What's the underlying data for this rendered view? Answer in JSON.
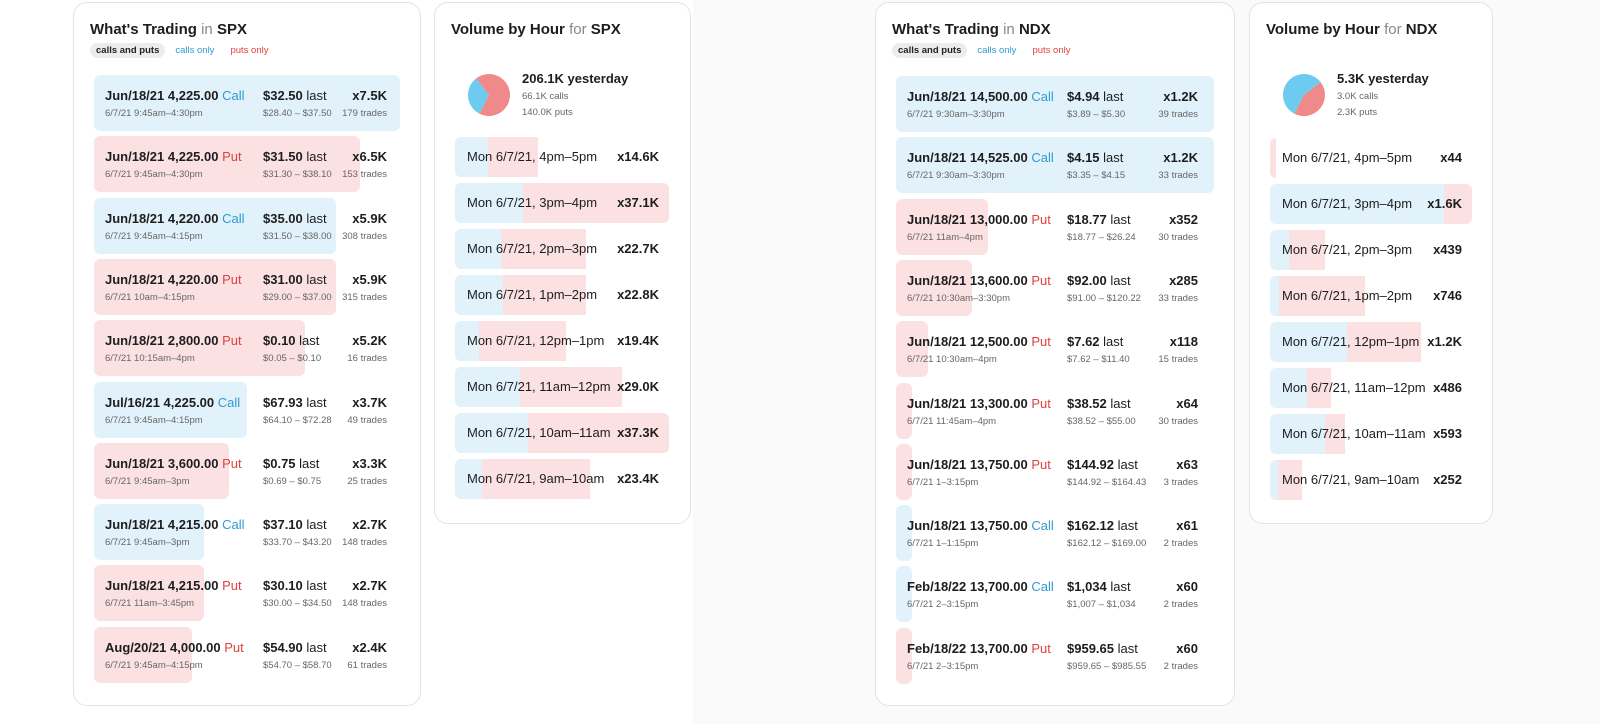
{
  "colors": {
    "call": "#e1f2fa",
    "put": "#fbe1e2",
    "call_text": "#2e9bd1",
    "put_text": "#e0413e",
    "pie_call": "#6ccbef",
    "pie_put": "#f08a8a"
  },
  "spx": {
    "trading": {
      "title_prefix": "What's Trading",
      "title_conj": "in",
      "symbol": "SPX",
      "filters": [
        "calls and puts",
        "calls only",
        "puts only"
      ],
      "trades": [
        {
          "contract": "Jun/18/21 4,225.00",
          "type": "Call",
          "window": "6/7/21 9:45am–4:30pm",
          "last": "$32.50",
          "last_word": "last",
          "range": "$28.40 – $37.50",
          "volume": "x7.5K",
          "trades": "179 trades",
          "bar_fraction": 1.0
        },
        {
          "contract": "Jun/18/21 4,225.00",
          "type": "Put",
          "window": "6/7/21 9:45am–4:30pm",
          "last": "$31.50",
          "last_word": "last",
          "range": "$31.30 – $38.10",
          "volume": "x6.5K",
          "trades": "153 trades",
          "bar_fraction": 0.87
        },
        {
          "contract": "Jun/18/21 4,220.00",
          "type": "Call",
          "window": "6/7/21 9:45am–4:15pm",
          "last": "$35.00",
          "last_word": "last",
          "range": "$31.50 – $38.00",
          "volume": "x5.9K",
          "trades": "308 trades",
          "bar_fraction": 0.79
        },
        {
          "contract": "Jun/18/21 4,220.00",
          "type": "Put",
          "window": "6/7/21 10am–4:15pm",
          "last": "$31.00",
          "last_word": "last",
          "range": "$29.00 – $37.00",
          "volume": "x5.9K",
          "trades": "315 trades",
          "bar_fraction": 0.79
        },
        {
          "contract": "Jun/18/21 2,800.00",
          "type": "Put",
          "window": "6/7/21 10:15am–4pm",
          "last": "$0.10",
          "last_word": "last",
          "range": "$0.05 – $0.10",
          "volume": "x5.2K",
          "trades": "16 trades",
          "bar_fraction": 0.69
        },
        {
          "contract": "Jul/16/21 4,225.00",
          "type": "Call",
          "window": "6/7/21 9:45am–4:15pm",
          "last": "$67.93",
          "last_word": "last",
          "range": "$64.10 – $72.28",
          "volume": "x3.7K",
          "trades": "49 trades",
          "bar_fraction": 0.5
        },
        {
          "contract": "Jun/18/21 3,600.00",
          "type": "Put",
          "window": "6/7/21 9:45am–3pm",
          "last": "$0.75",
          "last_word": "last",
          "range": "$0.69 – $0.75",
          "volume": "x3.3K",
          "trades": "25 trades",
          "bar_fraction": 0.44
        },
        {
          "contract": "Jun/18/21 4,215.00",
          "type": "Call",
          "window": "6/7/21 9:45am–3pm",
          "last": "$37.10",
          "last_word": "last",
          "range": "$33.70 – $43.20",
          "volume": "x2.7K",
          "trades": "148 trades",
          "bar_fraction": 0.36
        },
        {
          "contract": "Jun/18/21 4,215.00",
          "type": "Put",
          "window": "6/7/21 11am–3:45pm",
          "last": "$30.10",
          "last_word": "last",
          "range": "$30.00 – $34.50",
          "volume": "x2.7K",
          "trades": "148 trades",
          "bar_fraction": 0.36
        },
        {
          "contract": "Aug/20/21 4,000.00",
          "type": "Put",
          "window": "6/7/21 9:45am–4:15pm",
          "last": "$54.90",
          "last_word": "last",
          "range": "$54.70 – $58.70",
          "volume": "x2.4K",
          "trades": "61 trades",
          "bar_fraction": 0.32
        }
      ]
    },
    "hourly": {
      "title_prefix": "Volume by Hour",
      "title_conj": "for",
      "symbol": "SPX",
      "total": "206.1K yesterday",
      "calls": "66.1K calls",
      "puts": "140.0K puts",
      "calls_share": 0.32,
      "rows": [
        {
          "label": "Mon 6/7/21, 4pm–5pm",
          "volume": "x14.6K",
          "fraction": 0.39,
          "call_share": 0.4
        },
        {
          "label": "Mon 6/7/21, 3pm–4pm",
          "volume": "x37.1K",
          "fraction": 1.0,
          "call_share": 0.32
        },
        {
          "label": "Mon 6/7/21, 2pm–3pm",
          "volume": "x22.7K",
          "fraction": 0.61,
          "call_share": 0.35
        },
        {
          "label": "Mon 6/7/21, 1pm–2pm",
          "volume": "x22.8K",
          "fraction": 0.61,
          "call_share": 0.37
        },
        {
          "label": "Mon 6/7/21, 12pm–1pm",
          "volume": "x19.4K",
          "fraction": 0.52,
          "call_share": 0.22
        },
        {
          "label": "Mon 6/7/21, 11am–12pm",
          "volume": "x29.0K",
          "fraction": 0.78,
          "call_share": 0.39
        },
        {
          "label": "Mon 6/7/21, 10am–11am",
          "volume": "x37.3K",
          "fraction": 1.0,
          "call_share": 0.34
        },
        {
          "label": "Mon 6/7/21, 9am–10am",
          "volume": "x23.4K",
          "fraction": 0.63,
          "call_share": 0.2
        }
      ]
    }
  },
  "ndx": {
    "trading": {
      "title_prefix": "What's Trading",
      "title_conj": "in",
      "symbol": "NDX",
      "filters": [
        "calls and puts",
        "calls only",
        "puts only"
      ],
      "trades": [
        {
          "contract": "Jun/18/21 14,500.00",
          "type": "Call",
          "window": "6/7/21 9:30am–3:30pm",
          "last": "$4.94",
          "last_word": "last",
          "range": "$3.89 – $5.30",
          "volume": "x1.2K",
          "trades": "39 trades",
          "bar_fraction": 1.0
        },
        {
          "contract": "Jun/18/21 14,525.00",
          "type": "Call",
          "window": "6/7/21 9:30am–3:30pm",
          "last": "$4.15",
          "last_word": "last",
          "range": "$3.35 – $4.15",
          "volume": "x1.2K",
          "trades": "33 trades",
          "bar_fraction": 1.0
        },
        {
          "contract": "Jun/18/21 13,000.00",
          "type": "Put",
          "window": "6/7/21 11am–4pm",
          "last": "$18.77",
          "last_word": "last",
          "range": "$18.77 – $26.24",
          "volume": "x352",
          "trades": "30 trades",
          "bar_fraction": 0.29
        },
        {
          "contract": "Jun/18/21 13,600.00",
          "type": "Put",
          "window": "6/7/21 10:30am–3:30pm",
          "last": "$92.00",
          "last_word": "last",
          "range": "$91.00 – $120.22",
          "volume": "x285",
          "trades": "33 trades",
          "bar_fraction": 0.24
        },
        {
          "contract": "Jun/18/21 12,500.00",
          "type": "Put",
          "window": "6/7/21 10:30am–4pm",
          "last": "$7.62",
          "last_word": "last",
          "range": "$7.62 – $11.40",
          "volume": "x118",
          "trades": "15 trades",
          "bar_fraction": 0.1
        },
        {
          "contract": "Jun/18/21 13,300.00",
          "type": "Put",
          "window": "6/7/21 11:45am–4pm",
          "last": "$38.52",
          "last_word": "last",
          "range": "$38.52 – $55.00",
          "volume": "x64",
          "trades": "30 trades",
          "bar_fraction": 0.05
        },
        {
          "contract": "Jun/18/21 13,750.00",
          "type": "Put",
          "window": "6/7/21 1–3:15pm",
          "last": "$144.92",
          "last_word": "last",
          "range": "$144.92 – $164.43",
          "volume": "x63",
          "trades": "3 trades",
          "bar_fraction": 0.05
        },
        {
          "contract": "Jun/18/21 13,750.00",
          "type": "Call",
          "window": "6/7/21 1–1:15pm",
          "last": "$162.12",
          "last_word": "last",
          "range": "$162.12 – $169.00",
          "volume": "x61",
          "trades": "2 trades",
          "bar_fraction": 0.05
        },
        {
          "contract": "Feb/18/22 13,700.00",
          "type": "Call",
          "window": "6/7/21 2–3:15pm",
          "last": "$1,034",
          "last_word": "last",
          "range": "$1,007 – $1,034",
          "volume": "x60",
          "trades": "2 trades",
          "bar_fraction": 0.05
        },
        {
          "contract": "Feb/18/22 13,700.00",
          "type": "Put",
          "window": "6/7/21 2–3:15pm",
          "last": "$959.65",
          "last_word": "last",
          "range": "$959.65 – $985.55",
          "volume": "x60",
          "trades": "2 trades",
          "bar_fraction": 0.05
        }
      ]
    },
    "hourly": {
      "title_prefix": "Volume by Hour",
      "title_conj": "for",
      "symbol": "NDX",
      "total": "5.3K yesterday",
      "calls": "3.0K calls",
      "puts": "2.3K puts",
      "calls_share": 0.57,
      "rows": [
        {
          "label": "Mon 6/7/21, 4pm–5pm",
          "volume": "x44",
          "fraction": 0.03,
          "call_share": 0.0
        },
        {
          "label": "Mon 6/7/21, 3pm–4pm",
          "volume": "x1.6K",
          "fraction": 1.0,
          "call_share": 0.86
        },
        {
          "label": "Mon 6/7/21, 2pm–3pm",
          "volume": "x439",
          "fraction": 0.27,
          "call_share": 0.35
        },
        {
          "label": "Mon 6/7/21, 1pm–2pm",
          "volume": "x746",
          "fraction": 0.47,
          "call_share": 0.09
        },
        {
          "label": "Mon 6/7/21, 12pm–1pm",
          "volume": "x1.2K",
          "fraction": 0.75,
          "call_share": 0.51
        },
        {
          "label": "Mon 6/7/21, 11am–12pm",
          "volume": "x486",
          "fraction": 0.3,
          "call_share": 0.61
        },
        {
          "label": "Mon 6/7/21, 10am–11am",
          "volume": "x593",
          "fraction": 0.37,
          "call_share": 0.73
        },
        {
          "label": "Mon 6/7/21, 9am–10am",
          "volume": "x252",
          "fraction": 0.16,
          "call_share": 0.25
        }
      ]
    }
  }
}
